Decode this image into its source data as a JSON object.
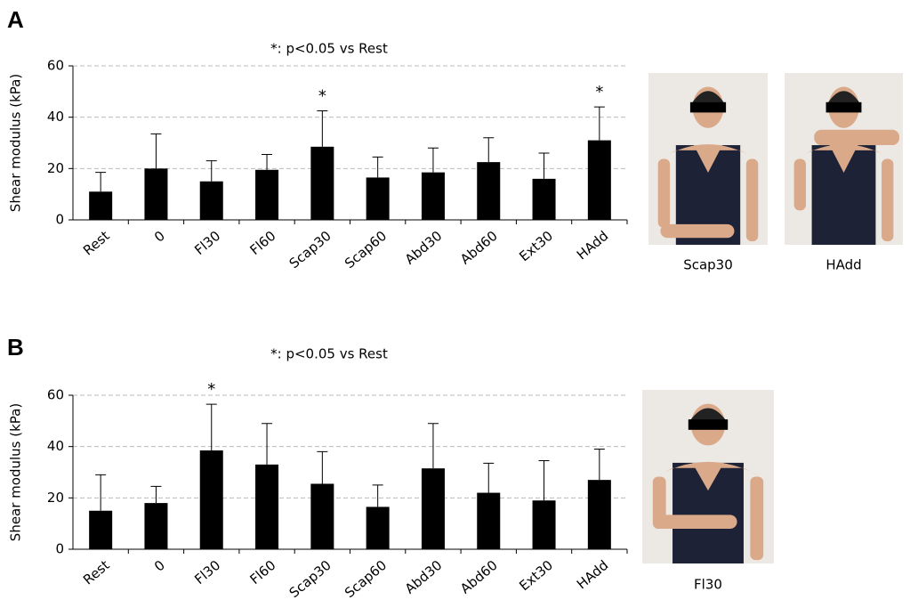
{
  "chart_data": [
    {
      "type": "bar",
      "panel": "A",
      "annotation": "*: p<0.05 vs Rest",
      "ylabel": "Shear modulus  (kPa)",
      "categories": [
        "Rest",
        "0",
        "Fl30",
        "Fl60",
        "Scap30",
        "Scap60",
        "Abd30",
        "Abd60",
        "Ext30",
        "HAdd"
      ],
      "values": [
        11,
        20,
        15,
        19.5,
        28.5,
        16.5,
        18.5,
        22.5,
        16,
        31
      ],
      "errors": [
        7.5,
        13.5,
        8,
        6,
        14,
        8,
        9.5,
        9.5,
        10,
        13
      ],
      "significance": [
        null,
        null,
        null,
        null,
        "*",
        null,
        null,
        null,
        null,
        "*"
      ],
      "color": "#000000",
      "ylim": [
        0,
        60
      ],
      "yticks": [
        0,
        20,
        40,
        60
      ],
      "grid": true,
      "photos": [
        {
          "caption": "Scap30"
        },
        {
          "caption": "HAdd"
        }
      ]
    },
    {
      "type": "bar",
      "panel": "B",
      "annotation": "*: p<0.05 vs Rest",
      "ylabel": "Shear modulus  (kPa)",
      "categories": [
        "Rest",
        "0",
        "Fl30",
        "Fl60",
        "Scap30",
        "Scap60",
        "Abd30",
        "Abd60",
        "Ext30",
        "HAdd"
      ],
      "values": [
        15,
        18,
        38.5,
        33,
        25.5,
        16.5,
        31.5,
        22,
        19,
        27
      ],
      "errors": [
        14,
        6.5,
        18,
        16,
        12.5,
        8.5,
        17.5,
        11.5,
        15.5,
        12
      ],
      "significance": [
        null,
        null,
        "*",
        null,
        null,
        null,
        null,
        null,
        null,
        null
      ],
      "color": "#000000",
      "ylim": [
        0,
        60
      ],
      "yticks": [
        0,
        20,
        40,
        60
      ],
      "grid": true,
      "photos": [
        {
          "caption": "Fl30"
        }
      ]
    }
  ]
}
